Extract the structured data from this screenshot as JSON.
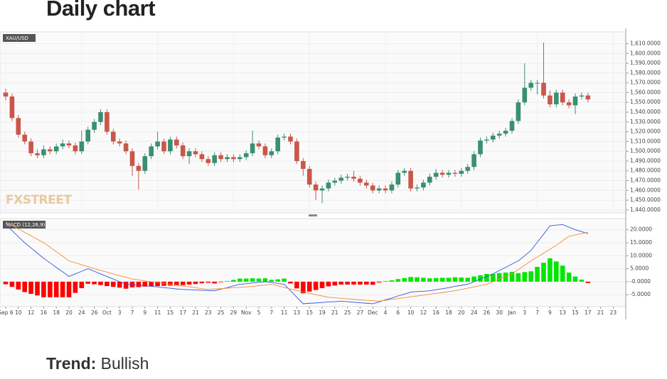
{
  "heading": "Daily chart",
  "trend": {
    "label": "Trend:",
    "value": "Bullish"
  },
  "chart_data": [
    {
      "type": "candlestick",
      "symbol": "XAU/USD",
      "watermark": "FXSTREET",
      "up_color": "#3a8f74",
      "down_color": "#c9574a",
      "open": [
        1560,
        1556,
        1534,
        1517,
        1510,
        1498,
        1496,
        1502,
        1500,
        1505,
        1508,
        1506,
        1500,
        1510,
        1522,
        1530,
        1540,
        1520,
        1510,
        1508,
        1500,
        1485,
        1480,
        1495,
        1505,
        1510,
        1500,
        1512,
        1506,
        1495,
        1500,
        1497,
        1492,
        1488,
        1496,
        1492,
        1494,
        1492,
        1494,
        1498,
        1508,
        1505,
        1496,
        1500,
        1514,
        1515,
        1510,
        1490,
        1482,
        1466,
        1460,
        1462,
        1468,
        1470,
        1473,
        1474,
        1472,
        1468,
        1465,
        1460,
        1462,
        1460,
        1466,
        1478,
        1480,
        1462,
        1463,
        1468,
        1474,
        1478,
        1476,
        1478,
        1477,
        1480,
        1484,
        1497,
        1511,
        1512,
        1516,
        1518,
        1521,
        1531,
        1550,
        1565,
        1570,
        1570,
        1557,
        1548,
        1560,
        1550,
        1547,
        1556,
        1557
      ],
      "high": [
        1564,
        1559,
        1537,
        1520,
        1513,
        1502,
        1506,
        1505,
        1508,
        1512,
        1511,
        1509,
        1521,
        1525,
        1533,
        1543,
        1543,
        1523,
        1513,
        1511,
        1503,
        1488,
        1498,
        1508,
        1520,
        1513,
        1515,
        1515,
        1509,
        1503,
        1503,
        1500,
        1495,
        1499,
        1499,
        1497,
        1497,
        1497,
        1501,
        1521,
        1511,
        1508,
        1503,
        1517,
        1518,
        1518,
        1513,
        1493,
        1485,
        1469,
        1465,
        1471,
        1473,
        1476,
        1477,
        1480,
        1475,
        1471,
        1468,
        1465,
        1465,
        1469,
        1481,
        1483,
        1483,
        1466,
        1471,
        1477,
        1482,
        1481,
        1481,
        1481,
        1483,
        1487,
        1500,
        1514,
        1515,
        1519,
        1521,
        1524,
        1534,
        1553,
        1590,
        1573,
        1573,
        1611,
        1562,
        1563,
        1563,
        1553,
        1559,
        1560,
        1560
      ],
      "low": [
        1552,
        1531,
        1514,
        1507,
        1495,
        1493,
        1493,
        1497,
        1497,
        1502,
        1503,
        1497,
        1497,
        1507,
        1519,
        1527,
        1517,
        1507,
        1505,
        1497,
        1475,
        1461,
        1477,
        1492,
        1502,
        1497,
        1497,
        1503,
        1492,
        1487,
        1494,
        1489,
        1485,
        1485,
        1489,
        1489,
        1489,
        1489,
        1491,
        1495,
        1502,
        1493,
        1493,
        1497,
        1511,
        1507,
        1487,
        1475,
        1463,
        1450,
        1447,
        1459,
        1465,
        1467,
        1470,
        1469,
        1465,
        1462,
        1457,
        1457,
        1457,
        1457,
        1463,
        1475,
        1459,
        1459,
        1460,
        1465,
        1471,
        1473,
        1473,
        1474,
        1474,
        1477,
        1481,
        1494,
        1508,
        1509,
        1513,
        1515,
        1518,
        1528,
        1547,
        1562,
        1558,
        1554,
        1545,
        1545,
        1547,
        1544,
        1538,
        1553,
        1550
      ],
      "close": [
        1556,
        1534,
        1517,
        1510,
        1498,
        1496,
        1502,
        1500,
        1505,
        1508,
        1506,
        1500,
        1510,
        1522,
        1530,
        1540,
        1520,
        1510,
        1508,
        1500,
        1485,
        1480,
        1495,
        1505,
        1510,
        1500,
        1512,
        1506,
        1495,
        1500,
        1497,
        1492,
        1488,
        1496,
        1492,
        1494,
        1492,
        1494,
        1498,
        1508,
        1505,
        1496,
        1500,
        1514,
        1515,
        1510,
        1490,
        1482,
        1466,
        1460,
        1462,
        1468,
        1470,
        1473,
        1474,
        1472,
        1468,
        1465,
        1460,
        1462,
        1460,
        1466,
        1478,
        1480,
        1462,
        1463,
        1468,
        1474,
        1478,
        1476,
        1478,
        1477,
        1480,
        1484,
        1497,
        1511,
        1512,
        1516,
        1518,
        1521,
        1531,
        1550,
        1565,
        1570,
        1570,
        1557,
        1548,
        1560,
        1550,
        1547,
        1556,
        1557,
        1553
      ],
      "ylim": [
        1437,
        1622
      ],
      "yticks": [
        {
          "value": 1440,
          "label": "1,440.0000"
        },
        {
          "value": 1450,
          "label": "1,450.0000"
        },
        {
          "value": 1460,
          "label": "1,460.0000"
        },
        {
          "value": 1470,
          "label": "1,470.0000"
        },
        {
          "value": 1480,
          "label": "1,480.0000"
        },
        {
          "value": 1490,
          "label": "1,490.0000"
        },
        {
          "value": 1500,
          "label": "1,500.0000"
        },
        {
          "value": 1510,
          "label": "1,510.0000"
        },
        {
          "value": 1520,
          "label": "1,520.0000"
        },
        {
          "value": 1530,
          "label": "1,530.0000"
        },
        {
          "value": 1540,
          "label": "1,540.0000"
        },
        {
          "value": 1550,
          "label": "1,550.0000"
        },
        {
          "value": 1560,
          "label": "1,560.0000"
        },
        {
          "value": 1570,
          "label": "1,570.0000"
        },
        {
          "value": 1580,
          "label": "1,580.0000"
        },
        {
          "value": 1590,
          "label": "1,590.0000"
        },
        {
          "value": 1600,
          "label": "1,600.0000"
        },
        {
          "value": 1610,
          "label": "1,610.0000"
        }
      ],
      "grid": true
    },
    {
      "type": "macd",
      "title": "MACD (12,26,9)",
      "xticks": [
        "Sep 6",
        "10",
        "12",
        "16",
        "18",
        "20",
        "24",
        "26",
        "Oct",
        "3",
        "7",
        "9",
        "11",
        "15",
        "17",
        "21",
        "23",
        "25",
        "29",
        "Nov",
        "5",
        "7",
        "11",
        "13",
        "15",
        "19",
        "21",
        "25",
        "27",
        "Dec",
        "4",
        "6",
        "10",
        "12",
        "16",
        "18",
        "20",
        "24",
        "26",
        "30",
        "Jan",
        "3",
        "7",
        "9",
        "13",
        "15",
        "17",
        "21",
        "23"
      ],
      "histogram": {
        "up_color": "#00e600",
        "down_color": "#ff0000",
        "values": [
          -1,
          -2,
          -3,
          -4,
          -4.7,
          -5.3,
          -6,
          -6,
          -6,
          -6,
          -6,
          -4.3,
          -2.5,
          -0.8,
          -1,
          -1.3,
          -1.7,
          -2,
          -2.3,
          -2.7,
          -2.2,
          -2.1,
          -1.9,
          -1.8,
          -1.7,
          -1.6,
          -1.5,
          -1.5,
          -1.3,
          -1.1,
          -0.9,
          -0.6,
          -0.4,
          -0.7,
          -0.2,
          0.2,
          0.7,
          1.2,
          1.2,
          1.3,
          1.2,
          1.3,
          0.7,
          0.9,
          1.2,
          -0.7,
          -2.6,
          -4.5,
          -3.8,
          -3.2,
          -2.5,
          -1.8,
          -1.5,
          -1.1,
          -1.1,
          -1.1,
          -1.1,
          -1.1,
          -1.2,
          -0.3,
          0.2,
          0.5,
          1,
          1.4,
          1.8,
          1.7,
          1.5,
          1.3,
          1.4,
          1.5,
          1.5,
          1.7,
          1.6,
          1.5,
          2,
          2.5,
          3,
          3,
          3.3,
          3.5,
          3.8,
          3.3,
          3.7,
          4,
          5.7,
          7.3,
          9,
          7.8,
          6.2,
          3.5,
          2,
          0.8,
          -0.5
        ]
      },
      "series": [
        {
          "color": "#3355dd",
          "values": [
            22,
            19.7,
            17.3,
            15,
            13,
            11,
            9,
            7.3,
            5.5,
            3.8,
            2,
            3,
            4,
            5,
            4,
            3,
            2,
            1,
            0,
            -1,
            -1.2,
            -1.4,
            -1.6,
            -1.8,
            -2,
            -2.3,
            -2.5,
            -2.8,
            -3,
            -3.1,
            -3.2,
            -3.3,
            -3.4,
            -3.5,
            -2.9,
            -2.3,
            -1.6,
            -1,
            -0.8,
            -0.5,
            -0.3,
            0,
            -0.3,
            -0.7,
            -1,
            -3.5,
            -6,
            -8.5,
            -8.3,
            -8.2,
            -8,
            -7.8,
            -7.7,
            -7.5,
            -7.7,
            -7.9,
            -8.1,
            -8.3,
            -8.5,
            -7.8,
            -7,
            -6.3,
            -5.5,
            -4.8,
            -4,
            -3.8,
            -3.7,
            -3.5,
            -3.1,
            -2.7,
            -2.3,
            -1.8,
            -1.4,
            -1,
            0,
            1,
            2,
            3,
            4.3,
            5.5,
            6.8,
            8,
            10,
            12,
            15.2,
            18.3,
            21.5,
            21.8,
            22,
            21,
            20,
            19.3,
            18.5
          ]
        },
        {
          "color": "#f08c3a",
          "values": [
            23,
            21.7,
            20.3,
            19,
            17.7,
            16.3,
            15,
            13.3,
            11.5,
            9.8,
            8,
            7.3,
            6.5,
            5.8,
            5,
            4.3,
            3.7,
            3,
            2.3,
            1.7,
            1,
            0.7,
            0.3,
            0,
            -0.3,
            -0.7,
            -1,
            -1.3,
            -1.7,
            -2,
            -2.3,
            -2.7,
            -3,
            -2.8,
            -2.7,
            -2.5,
            -2.3,
            -2.2,
            -2,
            -1.8,
            -1.5,
            -1.3,
            -1,
            -1.6,
            -2.2,
            -2.8,
            -3.4,
            -4,
            -4.5,
            -5,
            -5.5,
            -6,
            -6.2,
            -6.4,
            -6.6,
            -6.8,
            -7,
            -7.2,
            -7.3,
            -7.5,
            -7.2,
            -6.8,
            -6.5,
            -6.2,
            -5.8,
            -5.5,
            -5.2,
            -4.8,
            -4.5,
            -4.2,
            -3.8,
            -3.5,
            -3,
            -2.5,
            -2,
            -1.5,
            -1,
            0,
            1,
            2,
            3,
            4.7,
            6.3,
            8,
            9.5,
            11,
            12.5,
            14,
            15.8,
            17.5,
            18,
            18.5,
            19
          ]
        }
      ],
      "ylim": [
        -9.6,
        24.3
      ],
      "yticks": [
        {
          "value": 20,
          "label": "20.0000"
        },
        {
          "value": 15,
          "label": "15.0000"
        },
        {
          "value": 10,
          "label": "10.0000"
        },
        {
          "value": 5,
          "label": "5.0000"
        },
        {
          "value": 0,
          "label": "-0.0000"
        },
        {
          "value": -5,
          "label": "-5.0000"
        }
      ],
      "grid": true
    }
  ]
}
